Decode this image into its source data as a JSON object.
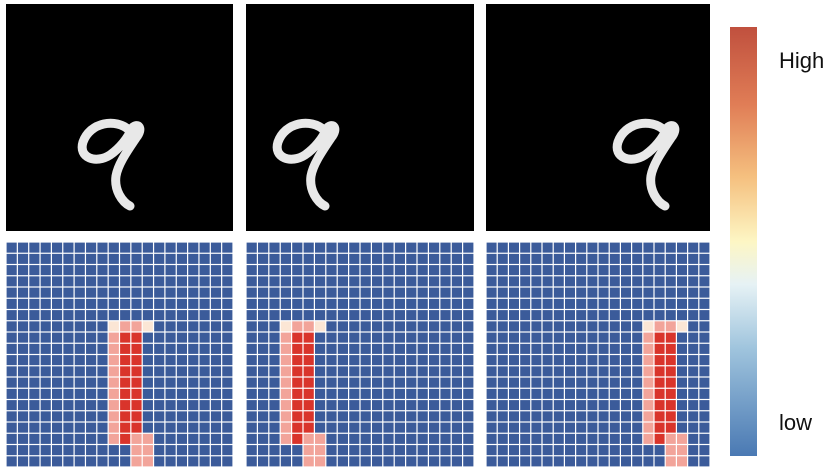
{
  "colorbar": {
    "high_label": "High",
    "low_label": "low"
  },
  "digit": "9",
  "panels": [
    {
      "name": "image-original",
      "digit_shift": 0
    },
    {
      "name": "image-shift-left",
      "digit_shift": 0
    },
    {
      "name": "image-shift-right",
      "digit_shift": 0.45
    }
  ],
  "heatmaps": {
    "rows": 20,
    "cols": 20,
    "maps": [
      {
        "name": "heatmap-1",
        "activation_col": 9
      },
      {
        "name": "heatmap-2",
        "activation_col": 3
      },
      {
        "name": "heatmap-3",
        "activation_col": 14
      }
    ]
  },
  "colors": {
    "low": "#3b5b9a",
    "grid_line": "#ffffff",
    "high": "#d9342b",
    "mid_high": "#f2a49a",
    "pale": "#fbe6d5"
  }
}
